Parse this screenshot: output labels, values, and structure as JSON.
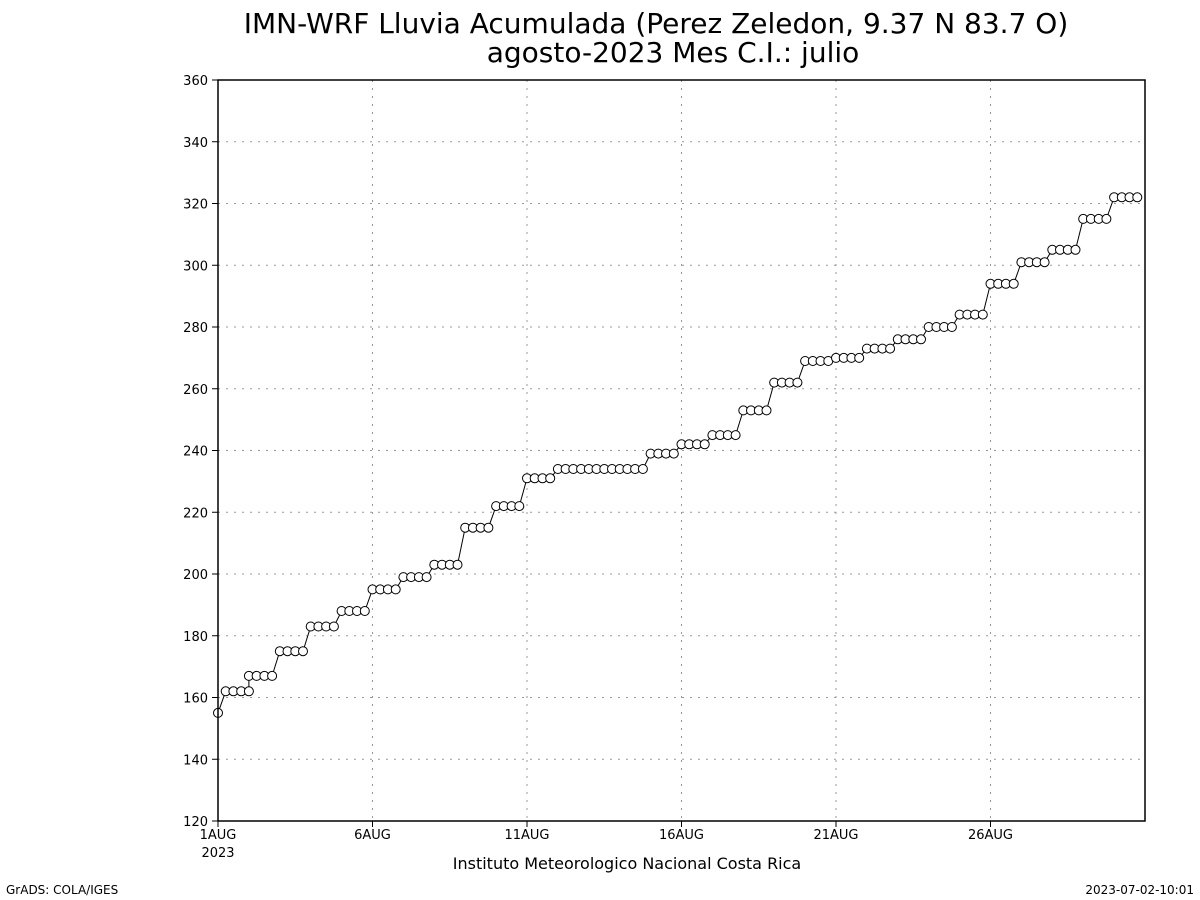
{
  "chart_data": {
    "type": "line",
    "title": "IMN-WRF  Lluvia Acumulada (Perez Zeledon, 9.37  N 83.7  O)",
    "subtitle": "agosto-2023 Mes C.I.: julio",
    "xlabel": "",
    "ylabel": "",
    "ylim": [
      120,
      360
    ],
    "yticks": [
      120,
      140,
      160,
      180,
      200,
      220,
      240,
      260,
      280,
      300,
      320,
      340,
      360
    ],
    "xlim_days": [
      1,
      31
    ],
    "xticks": [
      {
        "day": 1,
        "label": "1AUG",
        "sublabel": "2023"
      },
      {
        "day": 6,
        "label": "6AUG",
        "sublabel": ""
      },
      {
        "day": 11,
        "label": "11AUG",
        "sublabel": ""
      },
      {
        "day": 16,
        "label": "16AUG",
        "sublabel": ""
      },
      {
        "day": 21,
        "label": "21AUG",
        "sublabel": ""
      },
      {
        "day": 26,
        "label": "26AUG",
        "sublabel": ""
      }
    ],
    "grid": true,
    "marker": "open-circle",
    "line_color": "#000000",
    "daily_values": [
      [
        155,
        162,
        162,
        162,
        162
      ],
      [
        167,
        167,
        167,
        167
      ],
      [
        175,
        175,
        175,
        175
      ],
      [
        183,
        183,
        183,
        183
      ],
      [
        188,
        188,
        188,
        188
      ],
      [
        195,
        195,
        195,
        195
      ],
      [
        199,
        199,
        199,
        199
      ],
      [
        203,
        203,
        203,
        203
      ],
      [
        215,
        215,
        215,
        215
      ],
      [
        222,
        222,
        222,
        222
      ],
      [
        231,
        231,
        231,
        231
      ],
      [
        234,
        234,
        234,
        234
      ],
      [
        234,
        234,
        234,
        234
      ],
      [
        234,
        234,
        234,
        234
      ],
      [
        239,
        239,
        239,
        239
      ],
      [
        242,
        242,
        242,
        242
      ],
      [
        245,
        245,
        245,
        245
      ],
      [
        253,
        253,
        253,
        253
      ],
      [
        262,
        262,
        262,
        262
      ],
      [
        269,
        269,
        269,
        269
      ],
      [
        270,
        270,
        270,
        270
      ],
      [
        273,
        273,
        273,
        273
      ],
      [
        276,
        276,
        276,
        276
      ],
      [
        280,
        280,
        280,
        280
      ],
      [
        284,
        284,
        284,
        284
      ],
      [
        294,
        294,
        294,
        294
      ],
      [
        301,
        301,
        301,
        301
      ],
      [
        305,
        305,
        305,
        305
      ],
      [
        315,
        315,
        315,
        315
      ],
      [
        322,
        322,
        322,
        322
      ]
    ]
  },
  "footer": {
    "institution": "Instituto Meteorologico Nacional Costa Rica",
    "left_credit": "GrADS: COLA/IGES",
    "right_timestamp": "2023-07-02-10:01"
  }
}
